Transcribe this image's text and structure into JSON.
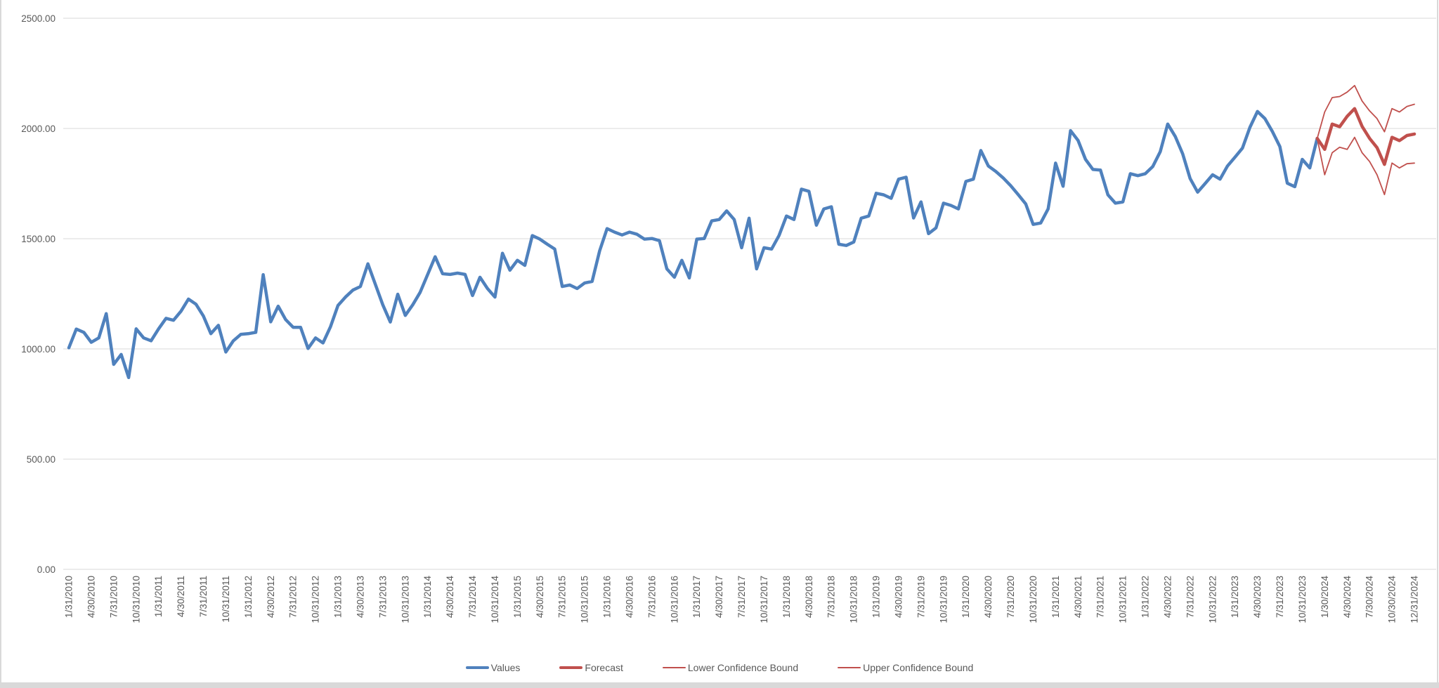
{
  "chart_data": {
    "type": "line",
    "title": "",
    "legend_position": "bottom",
    "grid": true,
    "colors": {
      "values_line": "#4F81BD",
      "forecast_line": "#C0504D",
      "gridline": "#D9D9D9",
      "axis_text": "#595959",
      "frame": "#D9D9D9",
      "background": "#FFFFFF"
    },
    "y_axis": {
      "min": 0,
      "max": 2500,
      "grid_interval": 500,
      "tick_labels": [
        "0.00",
        "500.00",
        "1000.00",
        "1500.00",
        "2000.00",
        "2500.00"
      ]
    },
    "x_axis": {
      "label_every_n_points": 3,
      "total_points": 181,
      "tick_labels": [
        "1/31/2010",
        "4/30/2010",
        "7/31/2010",
        "10/31/2010",
        "1/31/2011",
        "4/30/2011",
        "7/31/2011",
        "10/31/2011",
        "1/31/2012",
        "4/30/2012",
        "7/31/2012",
        "10/31/2012",
        "1/31/2013",
        "4/30/2013",
        "7/31/2013",
        "10/31/2013",
        "1/31/2014",
        "4/30/2014",
        "7/31/2014",
        "10/31/2014",
        "1/31/2015",
        "4/30/2015",
        "7/31/2015",
        "10/31/2015",
        "1/31/2016",
        "4/30/2016",
        "7/31/2016",
        "10/31/2016",
        "1/31/2017",
        "4/30/2017",
        "7/31/2017",
        "10/31/2017",
        "1/31/2018",
        "4/30/2018",
        "7/31/2018",
        "10/31/2018",
        "1/31/2019",
        "4/30/2019",
        "7/31/2019",
        "10/31/2019",
        "1/31/2020",
        "4/30/2020",
        "7/31/2020",
        "10/31/2020",
        "1/31/2021",
        "4/30/2021",
        "7/31/2021",
        "10/31/2021",
        "1/31/2022",
        "4/30/2022",
        "7/31/2022",
        "10/31/2022",
        "1/31/2023",
        "4/30/2023",
        "7/31/2023",
        "10/31/2023",
        "1/30/2024",
        "4/30/2024",
        "7/30/2024",
        "10/30/2024",
        "12/31/2024"
      ]
    },
    "series": [
      {
        "name": "Values",
        "color": "#4F81BD",
        "stroke_width": 4.5,
        "start_index": 0,
        "values": [
          1005,
          1090,
          1075,
          1030,
          1050,
          1160,
          930,
          975,
          870,
          1091,
          1050,
          1037,
          1091,
          1139,
          1130,
          1171,
          1226,
          1203,
          1149,
          1069,
          1107,
          986,
          1037,
          1066,
          1069,
          1075,
          1337,
          1123,
          1194,
          1133,
          1098,
          1098,
          1002,
          1050,
          1027,
          1101,
          1197,
          1235,
          1267,
          1283,
          1386,
          1293,
          1200,
          1122,
          1248,
          1152,
          1200,
          1257,
          1338,
          1418,
          1341,
          1338,
          1344,
          1338,
          1242,
          1325,
          1274,
          1235,
          1434,
          1357,
          1402,
          1379,
          1514,
          1498,
          1475,
          1453,
          1283,
          1290,
          1274,
          1299,
          1306,
          1445,
          1546,
          1530,
          1517,
          1530,
          1520,
          1498,
          1501,
          1491,
          1363,
          1325,
          1402,
          1322,
          1498,
          1501,
          1581,
          1587,
          1626,
          1587,
          1459,
          1593,
          1363,
          1459,
          1453,
          1514,
          1603,
          1587,
          1725,
          1715,
          1561,
          1635,
          1645,
          1475,
          1469,
          1485,
          1593,
          1603,
          1706,
          1699,
          1683,
          1770,
          1779,
          1594,
          1667,
          1523,
          1549,
          1661,
          1651,
          1635,
          1760,
          1770,
          1900,
          1830,
          1805,
          1775,
          1740,
          1700,
          1658,
          1565,
          1571,
          1635,
          1843,
          1738,
          1990,
          1946,
          1860,
          1814,
          1811,
          1699,
          1661,
          1667,
          1795,
          1786,
          1795,
          1827,
          1895,
          2020,
          1964,
          1885,
          1773,
          1711,
          1750,
          1790,
          1770,
          1830,
          1870,
          1911,
          2005,
          2077,
          2045,
          1986,
          1918,
          1752,
          1736,
          1860,
          1821,
          1955
        ]
      },
      {
        "name": "Forecast",
        "color": "#C0504D",
        "stroke_width": 4.5,
        "start_index": 167,
        "values": [
          1955,
          1905,
          2020,
          2008,
          2055,
          2090,
          2010,
          1955,
          1913,
          1837,
          1960,
          1945,
          1968,
          1975
        ]
      },
      {
        "name": "Lower Confidence Bound",
        "color": "#C0504D",
        "stroke_width": 1.8,
        "start_index": 167,
        "values": [
          1955,
          1790,
          1890,
          1915,
          1905,
          1960,
          1890,
          1850,
          1790,
          1700,
          1843,
          1821,
          1840,
          1843
        ]
      },
      {
        "name": "Upper Confidence Bound",
        "color": "#C0504D",
        "stroke_width": 1.8,
        "start_index": 167,
        "values": [
          1955,
          2075,
          2140,
          2145,
          2165,
          2195,
          2125,
          2080,
          2045,
          1985,
          2090,
          2075,
          2100,
          2110
        ]
      }
    ]
  }
}
